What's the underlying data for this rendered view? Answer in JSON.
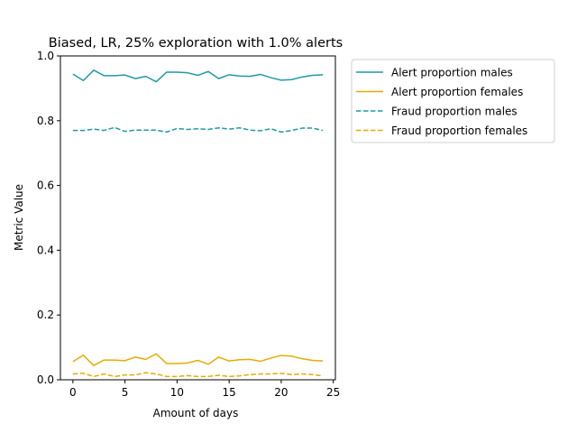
{
  "chart_data": {
    "type": "line",
    "title": "Biased, LR, 25% exploration with 1.0% alerts",
    "xlabel": "Amount of days",
    "ylabel": "Metric Value",
    "xlim": [
      -1.2,
      25.2
    ],
    "ylim": [
      0,
      1.0
    ],
    "xticks": [
      0,
      5,
      10,
      15,
      20,
      25
    ],
    "yticks": [
      0.0,
      0.2,
      0.4,
      0.6,
      0.8,
      1.0
    ],
    "xtick_labels": [
      "0",
      "5",
      "10",
      "15",
      "20",
      "25"
    ],
    "ytick_labels": [
      "0.0",
      "0.2",
      "0.4",
      "0.6",
      "0.8",
      "1.0"
    ],
    "grid": false,
    "legend_position": "outside-right",
    "x": [
      0,
      1,
      2,
      3,
      4,
      5,
      6,
      7,
      8,
      9,
      10,
      11,
      12,
      13,
      14,
      15,
      16,
      17,
      18,
      19,
      20,
      21,
      22,
      23,
      24
    ],
    "series": [
      {
        "name": "Alert proportion males",
        "color": "#1f9aa6",
        "dash": "solid",
        "values": [
          0.944,
          0.924,
          0.956,
          0.939,
          0.939,
          0.941,
          0.93,
          0.937,
          0.92,
          0.95,
          0.95,
          0.948,
          0.94,
          0.952,
          0.93,
          0.942,
          0.938,
          0.937,
          0.943,
          0.933,
          0.925,
          0.927,
          0.935,
          0.94,
          0.942
        ]
      },
      {
        "name": "Alert proportion females",
        "color": "#e6ac00",
        "dash": "solid",
        "values": [
          0.056,
          0.076,
          0.044,
          0.061,
          0.061,
          0.059,
          0.07,
          0.063,
          0.08,
          0.05,
          0.05,
          0.052,
          0.06,
          0.048,
          0.07,
          0.058,
          0.062,
          0.063,
          0.057,
          0.067,
          0.075,
          0.073,
          0.065,
          0.06,
          0.058
        ]
      },
      {
        "name": "Fraud proportion males",
        "color": "#1f9aa6",
        "dash": "dashed",
        "values": [
          0.77,
          0.77,
          0.774,
          0.77,
          0.779,
          0.767,
          0.771,
          0.771,
          0.771,
          0.765,
          0.776,
          0.773,
          0.775,
          0.773,
          0.778,
          0.774,
          0.778,
          0.771,
          0.769,
          0.775,
          0.765,
          0.77,
          0.777,
          0.777,
          0.77
        ]
      },
      {
        "name": "Fraud proportion females",
        "color": "#e6ac00",
        "dash": "dashed",
        "values": [
          0.018,
          0.02,
          0.01,
          0.018,
          0.01,
          0.015,
          0.015,
          0.022,
          0.018,
          0.01,
          0.01,
          0.013,
          0.01,
          0.01,
          0.014,
          0.01,
          0.012,
          0.016,
          0.018,
          0.018,
          0.02,
          0.016,
          0.018,
          0.016,
          0.012
        ]
      }
    ]
  }
}
